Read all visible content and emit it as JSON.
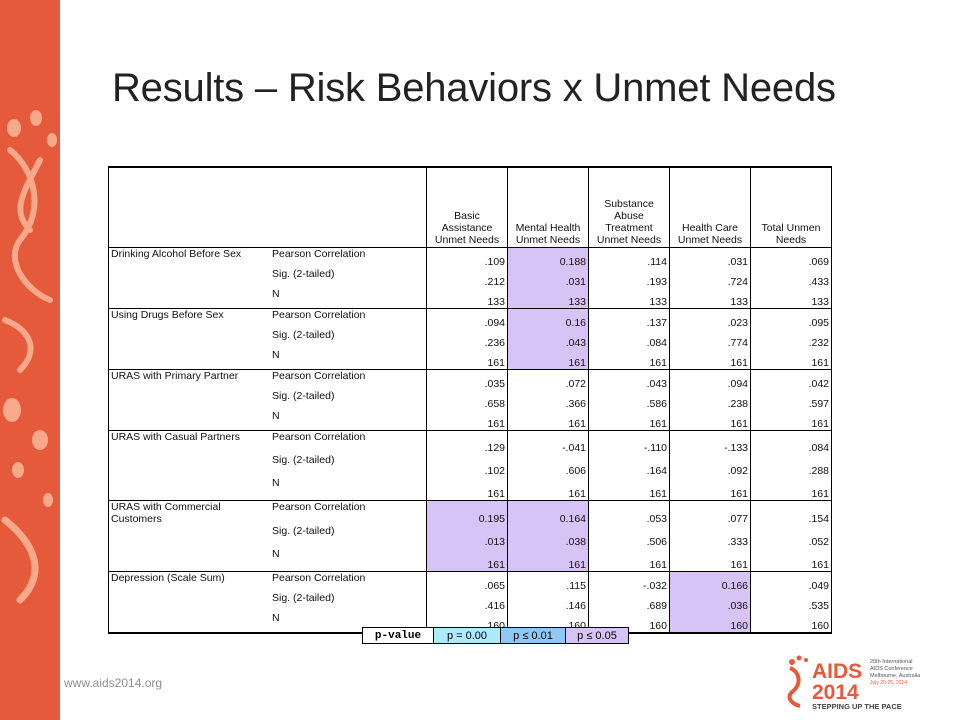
{
  "slide": {
    "title": "Results – Risk Behaviors x Unmet Needs",
    "footer_url": "www.aids2014.org"
  },
  "colors": {
    "sidebar": "#e55a3a",
    "highlight_p05": "#d7c3f5",
    "legend_p0": "#aeeaff",
    "legend_p01": "#8fc8f5"
  },
  "logo": {
    "name": "AIDS",
    "year": "2014",
    "conference": [
      "20th International",
      "AIDS Conference",
      "Melbourne, Australia",
      "July 20-25, 2014"
    ],
    "tagline": "STEPPING UP THE PACE"
  },
  "table": {
    "columns": [
      "Basic Assistance Unmet Needs",
      "Mental Health Unmet Needs",
      "Substance Abuse Treatment Unmet Needs",
      "Health Care Unmet Needs",
      "Total Unmen Needs"
    ],
    "stat_labels": [
      "Pearson Correlation",
      "Sig. (2-tailed)",
      "N"
    ],
    "rows": [
      {
        "variable": "Drinking Alcohol Before Sex",
        "pearson": [
          ".109",
          "0.188",
          ".114",
          ".031",
          ".069"
        ],
        "sig": [
          ".212",
          ".031",
          ".193",
          ".724",
          ".433"
        ],
        "n": [
          "133",
          "133",
          "133",
          "133",
          "133"
        ]
      },
      {
        "variable": "Using Drugs Before Sex",
        "pearson": [
          ".094",
          "0.16",
          ".137",
          ".023",
          ".095"
        ],
        "sig": [
          ".236",
          ".043",
          ".084",
          ".774",
          ".232"
        ],
        "n": [
          "161",
          "161",
          "161",
          "161",
          "161"
        ]
      },
      {
        "variable": "URAS with Primary Partner",
        "pearson": [
          ".035",
          ".072",
          ".043",
          ".094",
          ".042"
        ],
        "sig": [
          ".658",
          ".366",
          ".586",
          ".238",
          ".597"
        ],
        "n": [
          "161",
          "161",
          "161",
          "161",
          "161"
        ]
      },
      {
        "variable": "URAS with Casual Partners",
        "pearson": [
          ".129",
          "-.041",
          "-.110",
          "-.133",
          ".084"
        ],
        "sig": [
          ".102",
          ".606",
          ".164",
          ".092",
          ".288"
        ],
        "n": [
          "161",
          "161",
          "161",
          "161",
          "161"
        ]
      },
      {
        "variable": "URAS with Commercial Customers",
        "pearson": [
          "0.195",
          "0.164",
          ".053",
          ".077",
          ".154"
        ],
        "sig": [
          ".013",
          ".038",
          ".506",
          ".333",
          ".052"
        ],
        "n": [
          "161",
          "161",
          "161",
          "161",
          "161"
        ]
      },
      {
        "variable": "Depression (Scale Sum)",
        "pearson": [
          ".065",
          ".115",
          "-.032",
          "0.166",
          ".049"
        ],
        "sig": [
          ".416",
          ".146",
          ".689",
          ".036",
          ".535"
        ],
        "n": [
          "160",
          "160",
          "160",
          "160",
          "160"
        ]
      }
    ]
  },
  "legend": {
    "label": "p-value",
    "items": [
      "p = 0.00",
      "p ≤ 0.01",
      "p ≤ 0.05"
    ]
  }
}
